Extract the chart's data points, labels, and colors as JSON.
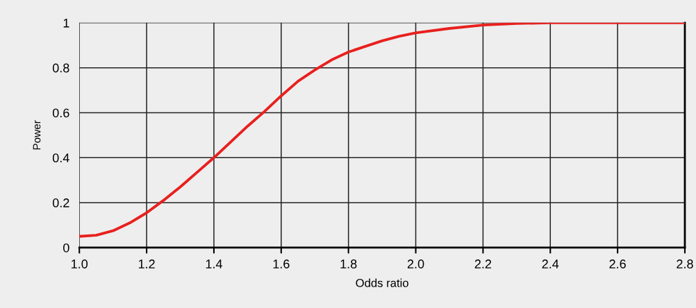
{
  "chart_data": {
    "type": "line",
    "xlabel": "Odds ratio",
    "ylabel": "Power",
    "x": [
      1.0,
      1.05,
      1.1,
      1.15,
      1.2,
      1.25,
      1.3,
      1.35,
      1.4,
      1.45,
      1.5,
      1.55,
      1.6,
      1.65,
      1.7,
      1.75,
      1.8,
      1.85,
      1.9,
      1.95,
      2.0,
      2.1,
      2.2,
      2.3,
      2.4,
      2.6,
      2.8
    ],
    "series": [
      {
        "color": "#e8201e",
        "values": [
          0.05,
          0.055,
          0.075,
          0.11,
          0.155,
          0.21,
          0.27,
          0.335,
          0.4,
          0.47,
          0.54,
          0.605,
          0.675,
          0.74,
          0.79,
          0.835,
          0.87,
          0.895,
          0.92,
          0.94,
          0.955,
          0.975,
          0.99,
          0.997,
          1.0,
          1.0,
          1.0
        ]
      }
    ],
    "xlim": [
      1.0,
      2.8
    ],
    "xticks": [
      {
        "value": 1.0,
        "label": "1.0"
      },
      1.2,
      1.4,
      1.6,
      1.8,
      {
        "value": 2.0,
        "label": "2.0"
      },
      2.2,
      2.4,
      2.6,
      2.8
    ],
    "ylim": [
      0,
      1
    ],
    "yticks": [
      0,
      0.2,
      0.4,
      0.6,
      0.8,
      1
    ],
    "grid": true,
    "marker": "none",
    "line_style": "solid"
  }
}
